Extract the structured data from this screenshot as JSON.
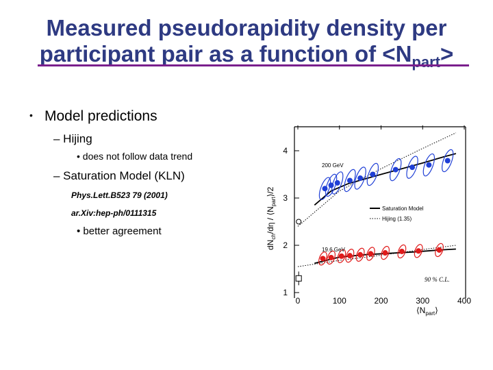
{
  "slide": {
    "title_line1": "Measured pseudorapidity density per",
    "title_line2_main": "participant pair as a function of <N",
    "title_line2_sub": "part",
    "title_line2_end": ">",
    "bullet_marker": "•",
    "bullet1": "Model predictions",
    "dash1": "– Hijing",
    "sub_bullet1": "• does not follow data trend",
    "dash2": "– Saturation Model (KLN)",
    "ref1": "Phys.Lett.B523 79 (2001)",
    "ref2": "ar.Xiv:hep-ph/0111315",
    "sub_bullet2": "• better agreement"
  },
  "colors": {
    "title": "#2e3a82",
    "rule": "#7a1f8c",
    "series200": "#1f3fd6",
    "series19": "#e01a1a"
  },
  "chart_data": {
    "type": "scatter",
    "xlabel": "⟨N",
    "xlabel_sub": "part",
    "xlabel_end": "⟩",
    "ylabel_main": "dN",
    "ylabel_ch": "ch",
    "ylabel_mid": "/dη / ⟨N",
    "ylabel_part": "part",
    "ylabel_end": "⟩/2",
    "xlim": [
      0,
      400
    ],
    "ylim": [
      1,
      4.4
    ],
    "x_ticks": [
      0,
      100,
      200,
      300,
      400
    ],
    "y_ticks": [
      1,
      2,
      3,
      4
    ],
    "annotation_200": "200 GeV",
    "annotation_19": "19.6 GeV",
    "cl_label": "90 % C.L.",
    "legend": [
      {
        "label": "Saturation Model",
        "style": "solid"
      },
      {
        "label": "Hijing (1.35)",
        "style": "dotted"
      }
    ],
    "series": [
      {
        "name": "200 GeV",
        "x": [
          65,
          80,
          95,
          125,
          150,
          180,
          235,
          275,
          315,
          360
        ],
        "y": [
          3.2,
          3.27,
          3.32,
          3.37,
          3.42,
          3.5,
          3.6,
          3.65,
          3.7,
          3.79
        ]
      },
      {
        "name": "19.6 GeV",
        "x": [
          60,
          80,
          105,
          125,
          150,
          175,
          210,
          250,
          290,
          340
        ],
        "y": [
          1.72,
          1.74,
          1.77,
          1.78,
          1.8,
          1.82,
          1.84,
          1.87,
          1.88,
          1.9
        ]
      },
      {
        "name": "pp open circle",
        "x": [
          2
        ],
        "y": [
          2.5
        ]
      },
      {
        "name": "pp square",
        "x": [
          2
        ],
        "y": [
          1.3
        ]
      }
    ],
    "saturation_model_200": {
      "x": [
        40,
        80,
        120,
        160,
        200,
        250,
        300,
        350,
        380
      ],
      "y": [
        2.85,
        3.15,
        3.3,
        3.4,
        3.5,
        3.62,
        3.74,
        3.87,
        3.94
      ]
    },
    "hijing_200": {
      "x": [
        0,
        100,
        200,
        300,
        380
      ],
      "y": [
        2.4,
        3.15,
        3.62,
        4.05,
        4.38
      ]
    },
    "saturation_model_19": {
      "x": [
        40,
        100,
        160,
        220,
        280,
        340,
        380
      ],
      "y": [
        1.62,
        1.75,
        1.8,
        1.83,
        1.86,
        1.9,
        1.92
      ]
    },
    "hijing_19": {
      "x": [
        0,
        100,
        200,
        300,
        380
      ],
      "y": [
        1.55,
        1.68,
        1.79,
        1.91,
        2.0
      ]
    }
  }
}
